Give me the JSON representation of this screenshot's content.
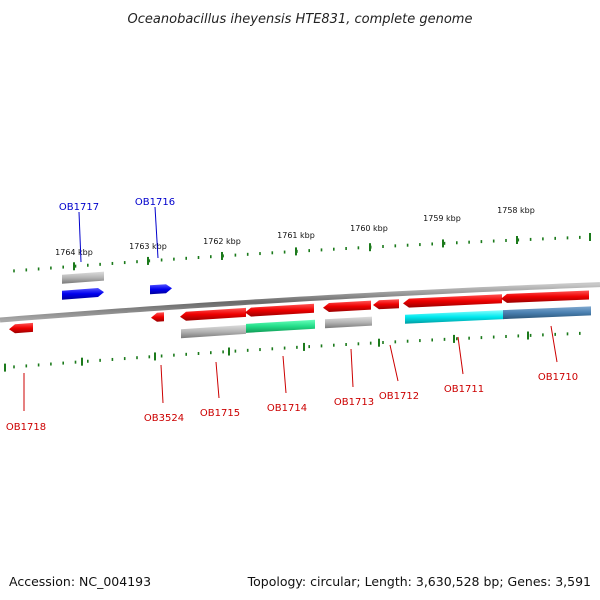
{
  "title": "Oceanobacillus iheyensis HTE831, complete genome",
  "footer": {
    "accession": "Accession: NC_004193",
    "summary": "Topology: circular; Length: 3,630,528 bp; Genes: 3,591"
  },
  "ruler": {
    "labels": [
      "1764 kbp",
      "1763 kbp",
      "1762 kbp",
      "1761 kbp",
      "1760 kbp",
      "1759 kbp",
      "1758 kbp"
    ]
  },
  "colors": {
    "tick": "#1b7a1b",
    "backbone": "#8a8a8a",
    "red_gene": "#ee0000",
    "blue_gene": "#0000ee",
    "gray_gene": "#b4b4b4",
    "green_gene": "#22dd88",
    "cyan_gene": "#00e8ee",
    "steel_gene": "#4a7fb0",
    "label_red": "#cc0000",
    "label_blue": "#0000cc"
  },
  "genes": [
    {
      "label": "OB1718",
      "strand": "reverse",
      "color": "red"
    },
    {
      "label": "OB3524",
      "strand": "reverse",
      "color": "red"
    },
    {
      "label": "OB1715",
      "strand": "reverse",
      "color": "red"
    },
    {
      "label": "OB1714",
      "strand": "reverse",
      "color": "red"
    },
    {
      "label": "OB1713",
      "strand": "reverse",
      "color": "red"
    },
    {
      "label": "OB1712",
      "strand": "reverse",
      "color": "red"
    },
    {
      "label": "OB1711",
      "strand": "reverse",
      "color": "red"
    },
    {
      "label": "OB1710",
      "strand": "reverse",
      "color": "red"
    },
    {
      "label": "OB1717",
      "strand": "forward",
      "color": "blue"
    },
    {
      "label": "OB1716",
      "strand": "forward",
      "color": "blue"
    }
  ]
}
